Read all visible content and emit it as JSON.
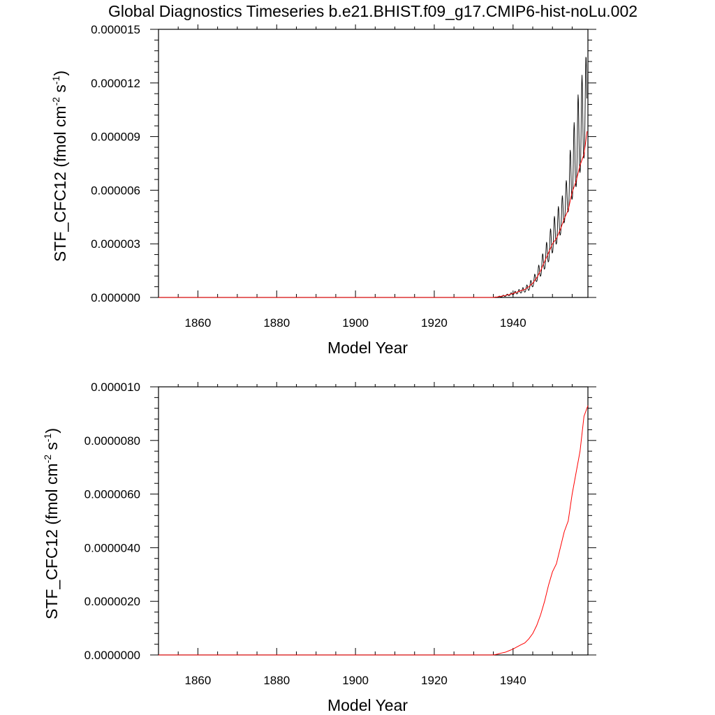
{
  "title": "Global Diagnostics Timeseries b.e21.BHIST.f09_g17.CMIP6-hist-noLu.002",
  "colors": {
    "monthly": "#000000",
    "annual": "#ff0000",
    "frame": "#000000",
    "background": "#ffffff"
  },
  "chart_data": [
    {
      "type": "line",
      "xlabel": "Model Year",
      "ylabel": {
        "main": "STF_CFC12 (fmol cm",
        "sup1": "-2",
        "mid": " s",
        "sup2": "-1",
        "end": ")"
      },
      "xlim": [
        1850,
        1959
      ],
      "ylim": [
        0,
        1.5e-05
      ],
      "xticks": [
        1860,
        1880,
        1900,
        1920,
        1940
      ],
      "xtick_labels": [
        "1860",
        "1880",
        "1900",
        "1920",
        "1940"
      ],
      "yticks": [
        0,
        3e-06,
        6e-06,
        9e-06,
        1.2e-05,
        1.5e-05
      ],
      "ytick_labels": [
        "0.000000",
        "0.000003",
        "0.000006",
        "0.000009",
        "0.000012",
        "0.000015"
      ],
      "grid": false,
      "series": [
        {
          "kind": "monthly",
          "x": [
            1850,
            1935,
            1936,
            1937,
            1938,
            1939,
            1940,
            1941,
            1942,
            1943,
            1944,
            1945,
            1946,
            1947,
            1948,
            1949,
            1950,
            1951,
            1952,
            1953,
            1954,
            1955,
            1956,
            1957,
            1958,
            1958.8
          ],
          "smin": [
            0,
            0,
            0,
            2e-08,
            6e-08,
            1e-07,
            1.5e-07,
            2e-07,
            2.5e-07,
            3e-07,
            4e-07,
            6e-07,
            9e-07,
            1.2e-06,
            1.6e-06,
            2e-06,
            2.5e-06,
            3e-06,
            3.5e-06,
            4.2e-06,
            4.8e-06,
            5.5e-06,
            6.2e-06,
            7e-06,
            7.8e-06,
            8.8e-06
          ],
          "smax": [
            0,
            0,
            5e-08,
            1e-07,
            1.5e-07,
            2.2e-07,
            3e-07,
            4e-07,
            5e-07,
            6e-07,
            8e-07,
            1.1e-06,
            1.5e-06,
            2.1e-06,
            2.8e-06,
            3.4e-06,
            4.3e-06,
            4.8e-06,
            5.4e-06,
            6e-06,
            7.1e-06,
            9.4e-06,
            1.02e-05,
            1.25e-05,
            1.24e-05,
            1.42e-05
          ]
        },
        {
          "kind": "annual",
          "x": [
            1850,
            1935,
            1936,
            1937,
            1938,
            1939,
            1940,
            1941,
            1942,
            1943,
            1944,
            1945,
            1946,
            1947,
            1948,
            1949,
            1950,
            1951,
            1952,
            1953,
            1954,
            1955,
            1956,
            1957,
            1958,
            1958.8
          ],
          "y": [
            0,
            0,
            3e-08,
            7e-08,
            1.1e-07,
            1.6e-07,
            2.2e-07,
            3e-07,
            3.8e-07,
            4.5e-07,
            6e-07,
            8e-07,
            1.1e-06,
            1.5e-06,
            2e-06,
            2.5e-06,
            3e-06,
            3.3e-06,
            3.8e-06,
            4.4e-06,
            4.9e-06,
            5.9e-06,
            6.5e-06,
            7.4e-06,
            8e-06,
            9.3e-06
          ]
        }
      ]
    },
    {
      "type": "line",
      "xlabel": "Model Year",
      "ylabel": {
        "main": "STF_CFC12 (fmol cm",
        "sup1": "-2",
        "mid": " s",
        "sup2": "-1",
        "end": ")"
      },
      "xlim": [
        1850,
        1959
      ],
      "ylim": [
        0,
        1e-05
      ],
      "xticks": [
        1860,
        1880,
        1900,
        1920,
        1940
      ],
      "xtick_labels": [
        "1860",
        "1880",
        "1900",
        "1920",
        "1940"
      ],
      "yticks": [
        0,
        2e-06,
        4e-06,
        6e-06,
        8e-06,
        1e-05
      ],
      "ytick_labels": [
        "0.0000000",
        "0.0000020",
        "0.0000040",
        "0.0000060",
        "0.0000080",
        "0.000010"
      ],
      "grid": false,
      "series": [
        {
          "kind": "annual",
          "x": [
            1850,
            1935,
            1936,
            1937,
            1938,
            1939,
            1940,
            1941,
            1942,
            1943,
            1944,
            1945,
            1946,
            1947,
            1948,
            1949,
            1950,
            1951,
            1952,
            1953,
            1954,
            1955,
            1956,
            1957,
            1958,
            1959
          ],
          "y": [
            0,
            0,
            3e-08,
            7e-08,
            1e-07,
            1.6e-07,
            2.2e-07,
            3e-07,
            3.8e-07,
            4.5e-07,
            6e-07,
            8e-07,
            1.1e-06,
            1.5e-06,
            2e-06,
            2.6e-06,
            3.1e-06,
            3.4e-06,
            4e-06,
            4.6e-06,
            5e-06,
            6e-06,
            6.8e-06,
            7.6e-06,
            8.9e-06,
            9.3e-06
          ]
        }
      ]
    }
  ]
}
